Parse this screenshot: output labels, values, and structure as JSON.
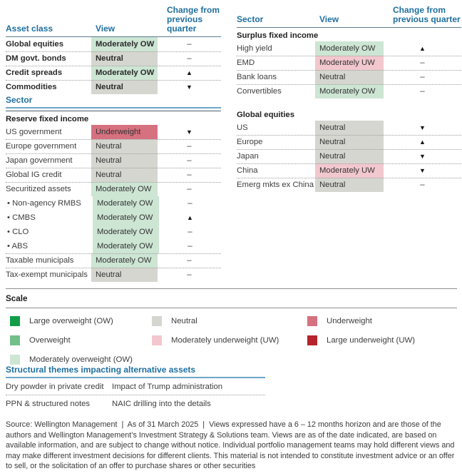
{
  "colors": {
    "large_ow": "#0f9e47",
    "overweight": "#72bf8a",
    "moderately_ow": "#cde5d3",
    "neutral": "#d6d6d0",
    "moderately_uw": "#f2c7ce",
    "underweight": "#d6717f",
    "large_uw": "#b6232b",
    "accent_blue": "#1f6f9f"
  },
  "asset_table": {
    "title_col1": "Asset class",
    "title_col2": "View",
    "title_col3": "Change from previous quarter",
    "rows": [
      {
        "label": "Global equities",
        "view": "Moderately OW",
        "key": "moderately_ow",
        "change": "–",
        "sep": false
      },
      {
        "label": "DM govt. bonds",
        "view": "Neutral",
        "key": "neutral",
        "change": "–",
        "sep": true
      },
      {
        "label": "Credit spreads",
        "view": "Moderately OW",
        "key": "moderately_ow",
        "change": "▲",
        "sep": true
      },
      {
        "label": "Commodities",
        "view": "Neutral",
        "key": "neutral",
        "change": "▼",
        "sep": true
      }
    ]
  },
  "sector_left": {
    "title": "Sector",
    "rows": [
      {
        "subheader": "Reserve fixed income"
      },
      {
        "label": "US government",
        "view": "Underweight",
        "key": "underweight",
        "change": "▼",
        "sep": false
      },
      {
        "label": "Europe government",
        "view": "Neutral",
        "key": "neutral",
        "change": "–",
        "sep": true
      },
      {
        "label": "Japan government",
        "view": "Neutral",
        "key": "neutral",
        "change": "–",
        "sep": true
      },
      {
        "label": "Global IG credit",
        "view": "Neutral",
        "key": "neutral",
        "change": "–",
        "sep": true
      },
      {
        "label": "Securitized assets",
        "view": "Moderately OW",
        "key": "moderately_ow",
        "change": "–",
        "sep": true
      },
      {
        "label": "Non-agency RMBS",
        "bullet": true,
        "view": "Moderately OW",
        "key": "moderately_ow",
        "change": "–",
        "sep": false
      },
      {
        "label": "CMBS",
        "bullet": true,
        "view": "Moderately OW",
        "key": "moderately_ow",
        "change": "▲",
        "sep": false
      },
      {
        "label": "CLO",
        "bullet": true,
        "view": "Moderately OW",
        "key": "moderately_ow",
        "change": "–",
        "sep": false
      },
      {
        "label": "ABS",
        "bullet": true,
        "view": "Moderately OW",
        "key": "moderately_ow",
        "change": "–",
        "sep": false
      },
      {
        "label": "Taxable municipals",
        "view": "Moderately OW",
        "key": "moderately_ow",
        "change": "–",
        "sep": true
      },
      {
        "label": "Tax-exempt municipals",
        "view": "Neutral",
        "key": "neutral",
        "change": "–",
        "sep": true
      }
    ]
  },
  "sector_right": {
    "title_col1": "Sector",
    "title_col2": "View",
    "title_col3": "Change from previous quarter",
    "rows": [
      {
        "subheader": "Surplus fixed income"
      },
      {
        "label": "High yield",
        "view": "Moderately OW",
        "key": "moderately_ow",
        "change": "▲",
        "sep": false
      },
      {
        "label": "EMD",
        "view": "Moderately UW",
        "key": "moderately_uw",
        "change": "–",
        "sep": true
      },
      {
        "label": "Bank loans",
        "view": "Neutral",
        "key": "neutral",
        "change": "–",
        "sep": true
      },
      {
        "label": "Convertibles",
        "view": "Moderately OW",
        "key": "moderately_ow",
        "change": "–",
        "sep": true
      },
      {
        "subheader": "Global equities",
        "gap": true
      },
      {
        "label": "US",
        "view": "Neutral",
        "key": "neutral",
        "change": "▼",
        "sep": false
      },
      {
        "label": "Europe",
        "view": "Neutral",
        "key": "neutral",
        "change": "▲",
        "sep": true
      },
      {
        "label": "Japan",
        "view": "Neutral",
        "key": "neutral",
        "change": "▼",
        "sep": true
      },
      {
        "label": "China",
        "view": "Moderately UW",
        "key": "moderately_uw",
        "change": "▼",
        "sep": true
      },
      {
        "label": "Emerg mkts ex China",
        "view": "Neutral",
        "key": "neutral",
        "change": "–",
        "sep": true
      }
    ]
  },
  "scale": {
    "title": "Scale",
    "columns": [
      [
        {
          "key": "large_ow",
          "label": "Large overweight (OW)"
        },
        {
          "key": "overweight",
          "label": "Overweight"
        },
        {
          "key": "moderately_ow",
          "label": "Moderately overweight (OW)"
        }
      ],
      [
        {
          "key": "neutral",
          "label": "Neutral"
        },
        {
          "key": "moderately_uw",
          "label": "Moderately underweight (UW)"
        }
      ],
      [
        {
          "key": "underweight",
          "label": "Underweight"
        },
        {
          "key": "large_uw",
          "label": "Large underweight (UW)"
        }
      ]
    ]
  },
  "themes": {
    "title": "Structural themes impacting alternative assets",
    "rows": [
      [
        "Dry powder in private credit",
        "Impact of Trump administration"
      ],
      [
        "PPN & structured notes",
        "NAIC drilling into the details"
      ]
    ]
  },
  "footer": {
    "text": "Source: Wellington Management  |  As of 31 March 2025  |  Views expressed have a 6 – 12 months horizon and are those of the authors and Wellington Management’s Investment Strategy & Solutions team. Views are as of the date indicated, are based on available information, and are subject to change without notice. Individual portfolio management teams may hold different views and may make different investment decisions for different clients. This material is not intended to constitute investment advice or an offer to sell, or the solicitation of an offer to purchase shares or other securities"
  }
}
